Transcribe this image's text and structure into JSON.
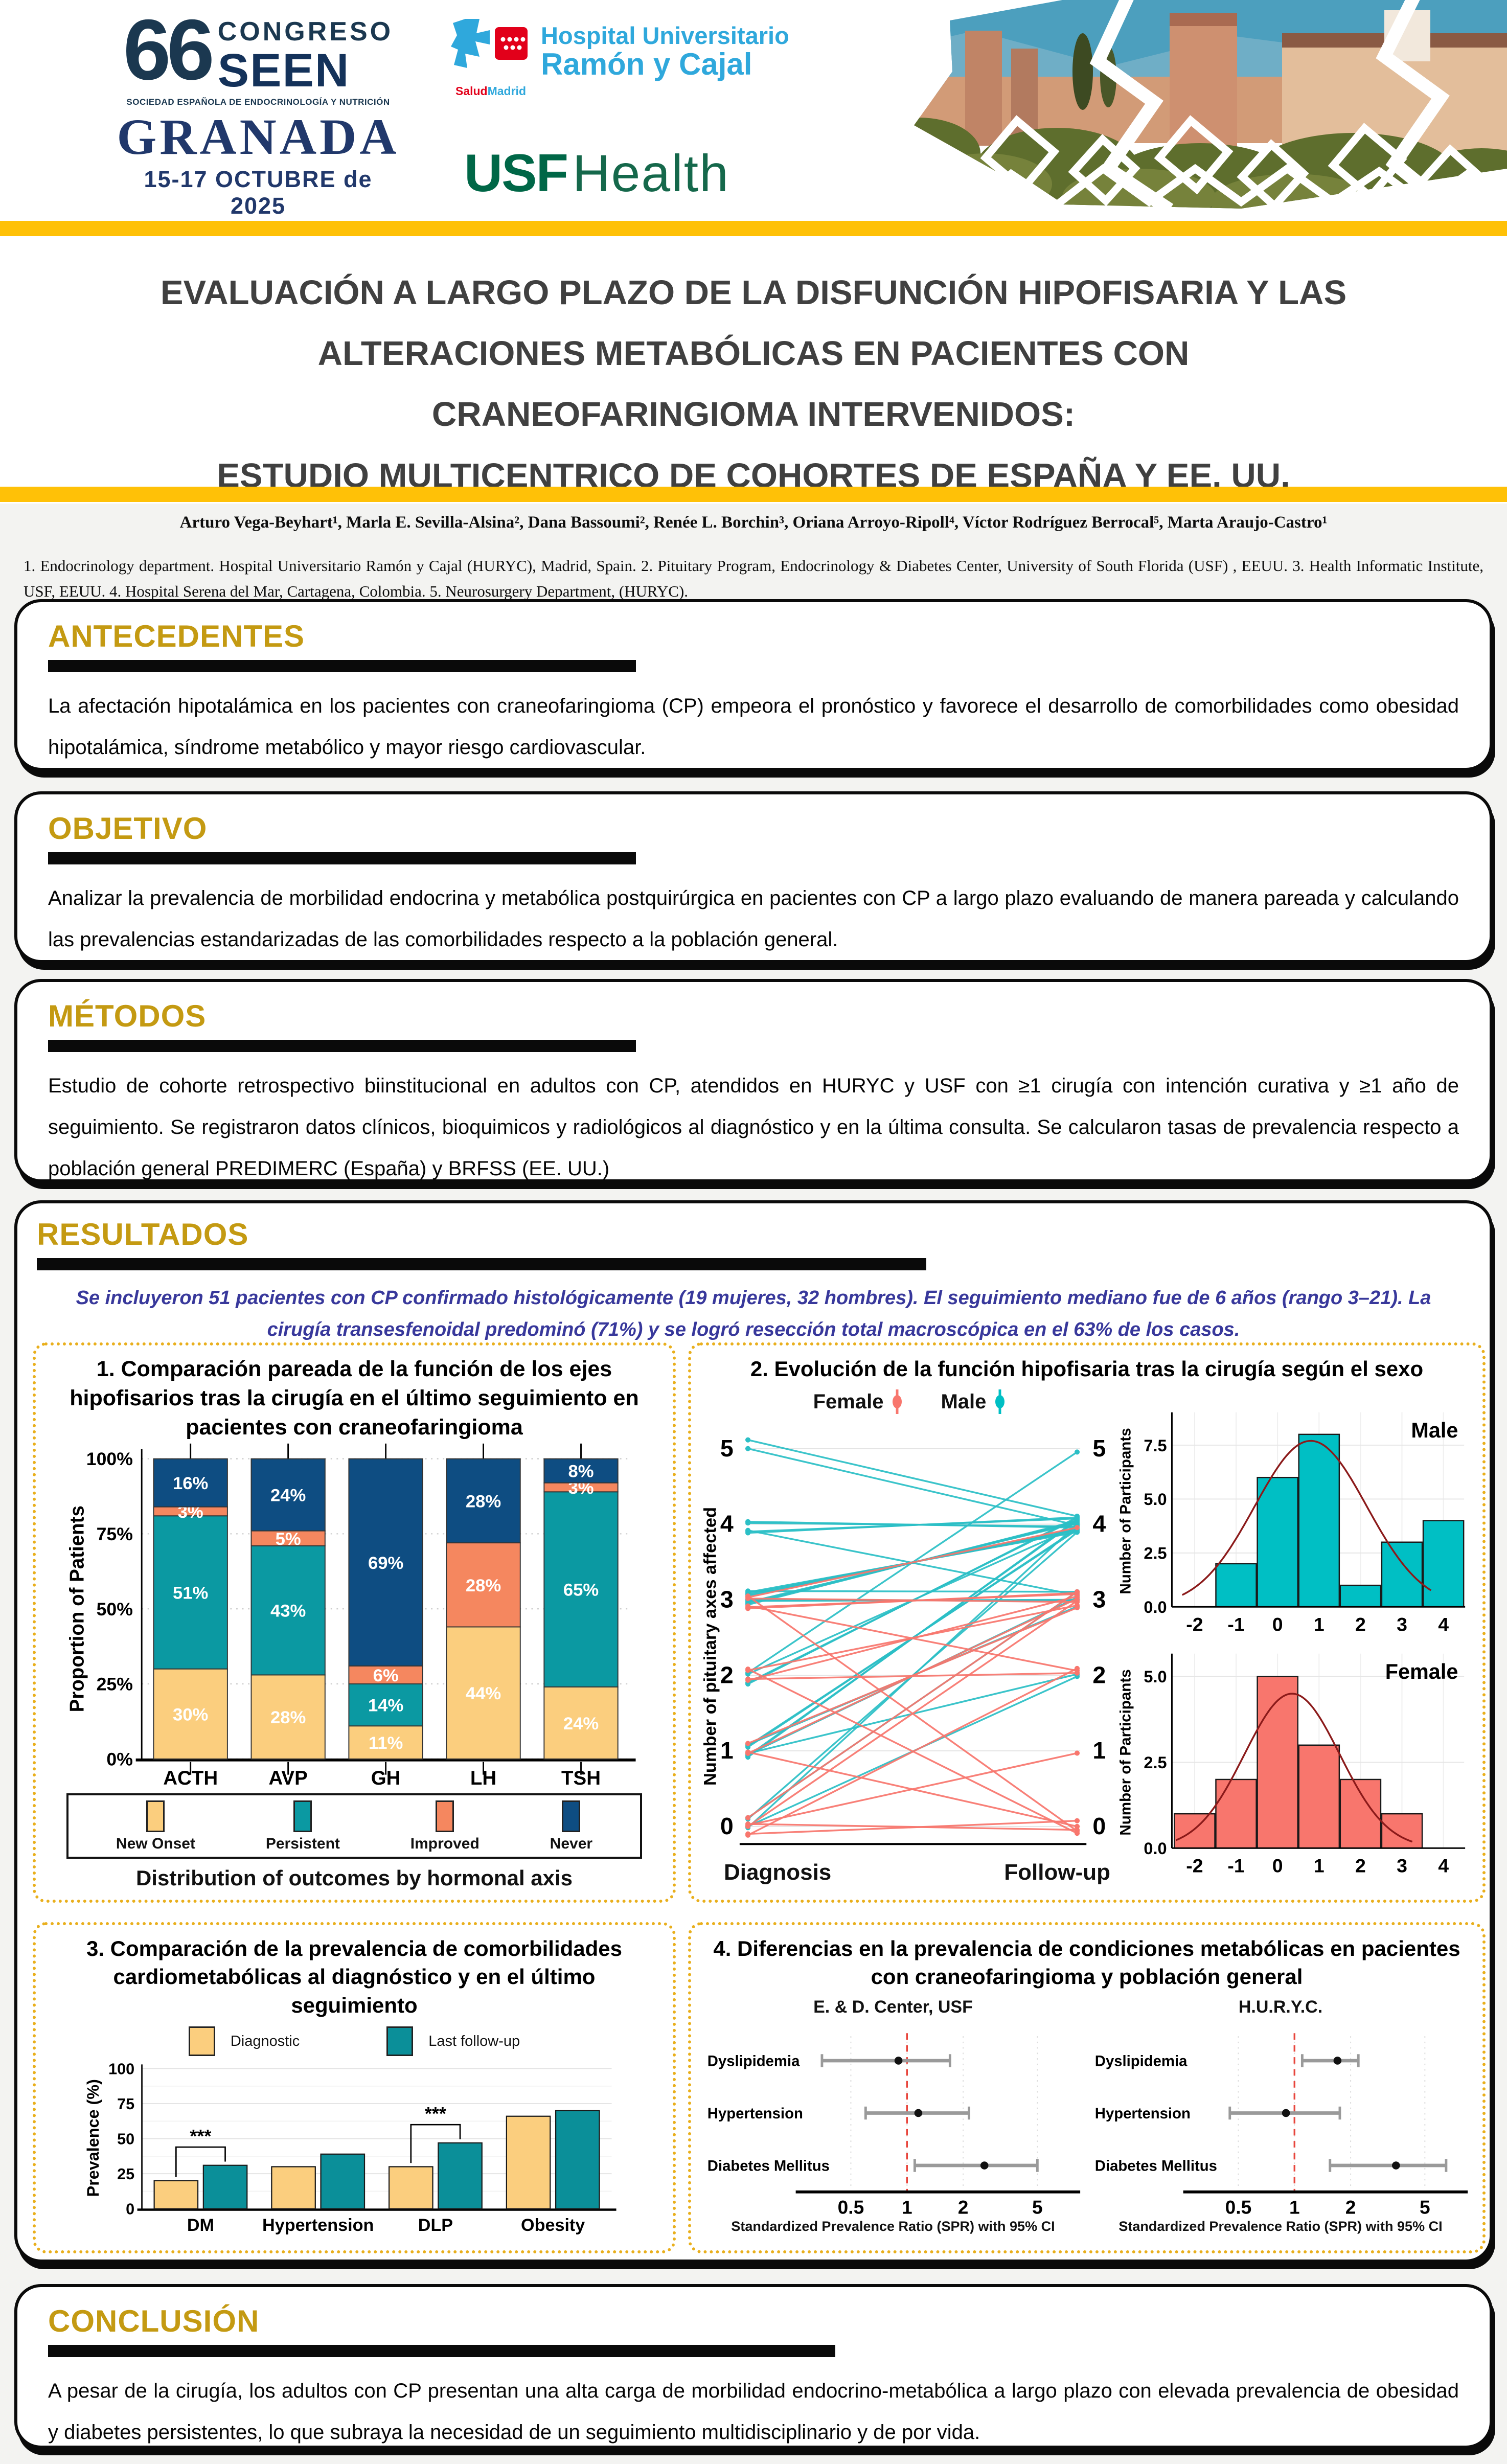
{
  "header": {
    "congress": {
      "number": "66",
      "congreso": "CONGRESO",
      "seen": "SEEN",
      "society": "SOCIEDAD ESPAÑOLA DE ENDOCRINOLOGÍA Y NUTRICIÓN",
      "city": "GRANADA",
      "dates": "15-17 OCTUBRE de 2025"
    },
    "hospital": {
      "line1": "Hospital Universitario",
      "line2": "Ramón y Cajal",
      "salud": "Salud",
      "madrid": "Madrid"
    },
    "usf": {
      "usf": "USF",
      "health": "Health"
    }
  },
  "title_lines": [
    "EVALUACIÓN A LARGO PLAZO DE LA DISFUNCIÓN HIPOFISARIA Y LAS",
    "ALTERACIONES METABÓLICAS EN PACIENTES CON",
    "CRANEOFARINGIOMA INTERVENIDOS:",
    "ESTUDIO MULTICENTRICO DE COHORTES DE ESPAÑA Y EE. UU."
  ],
  "authors": "Arturo Vega-Beyhart¹, Marla E. Sevilla-Alsina², Dana Bassoumi², Renée L. Borchin³, Oriana Arroyo-Ripoll⁴, Víctor Rodríguez Berrocal⁵, Marta Araujo-Castro¹",
  "affiliations": "1. Endocrinology department. Hospital Universitario Ramón y Cajal (HURYC), Madrid, Spain. 2. Pituitary Program, Endocrinology & Diabetes Center, University of South Florida (USF) , EEUU. 3. Health Informatic Institute, USF, EEUU. 4. Hospital Serena del Mar, Cartagena, Colombia. 5. Neurosurgery Department, (HURYC).",
  "sections": {
    "antecedentes": {
      "heading": "ANTECEDENTES",
      "text": "La afectación hipotalámica en los pacientes con craneofaringioma (CP) empeora el pronóstico y favorece el desarrollo de comorbilidades como obesidad hipotalámica, síndrome metabólico y mayor riesgo cardiovascular."
    },
    "objetivo": {
      "heading": "OBJETIVO",
      "text": "Analizar la prevalencia de morbilidad endocrina y metabólica postquirúrgica en pacientes con CP a largo plazo evaluando de manera pareada y calculando las prevalencias estandarizadas de las comorbilidades respecto a la población general."
    },
    "metodos": {
      "heading": "MÉTODOS",
      "text": "Estudio de cohorte retrospectivo biinstitucional en adultos con CP, atendidos en HURYC y USF con ≥1 cirugía con intención curativa y ≥1 año de seguimiento. Se registraron datos clínicos, bioquimicos y radiológicos al diagnóstico y en la última consulta. Se calcularon tasas de prevalencia respecto a población general PREDIMERC (España) y BRFSS (EE. UU.)"
    },
    "resultados": {
      "heading": "RESULTADOS",
      "intro": "Se incluyeron 51 pacientes con CP confirmado histológicamente (19 mujeres, 32 hombres). El seguimiento mediano fue de 6 años (rango 3–21). La cirugía transesfenoidal predominó (71%) y se logró resección total macroscópica en el 63% de los casos."
    },
    "conclusion": {
      "heading": "CONCLUSIÓN",
      "text": "A pesar de la cirugía, los adultos con CP presentan una alta carga de morbilidad endocrino-metabólica a largo plazo con elevada prevalencia de obesidad y diabetes persistentes, lo que subraya la necesidad de un seguimiento multidisciplinario y de por vida."
    }
  },
  "colors": {
    "bar_yellow": "#FFC107",
    "heading_gold": "#C49A12",
    "intro_blue": "#38389B",
    "male_teal": "#00BFC4",
    "female_salmon": "#F8766D",
    "curve_dark_red": "#8B1A1A",
    "forest_ref_red": "#E8453C",
    "navy": "#1B3850",
    "usf_green": "#006747",
    "hospital_blue": "#2FA8DC"
  },
  "chart_data": [
    {
      "id": "axes_outcomes",
      "type": "stacked_bar",
      "title": "1. Comparación pareada de la función de los ejes hipofisarios tras la cirugía en el último seguimiento en pacientes con craneofaringioma",
      "ylabel": "Proportion of Patients",
      "xlabel": "Distribution of outcomes by hormonal axis",
      "ytick_vals": [
        0,
        25,
        50,
        75,
        100
      ],
      "ytick_labels": [
        "0%",
        "25%",
        "50%",
        "75%",
        "100%"
      ],
      "categories": [
        "ACTH",
        "AVP",
        "GH",
        "LH",
        "TSH"
      ],
      "series": [
        {
          "name": "New Onset",
          "color": "#FBCE7E",
          "values": [
            30,
            28,
            11,
            44,
            24
          ]
        },
        {
          "name": "Persistent",
          "color": "#0B99A2",
          "values": [
            51,
            43,
            14,
            0,
            65
          ]
        },
        {
          "name": "Improved",
          "color": "#F5875F",
          "values": [
            3,
            5,
            6,
            28,
            3
          ]
        },
        {
          "name": "Never",
          "color": "#0E4D82",
          "values": [
            16,
            24,
            69,
            28,
            8
          ]
        }
      ]
    },
    {
      "id": "evolution_by_sex",
      "type": "slope_histogram",
      "title": "2. Evolución de la función hipofisaria tras la cirugía según el sexo",
      "legend": [
        {
          "name": "Female",
          "color": "#F8766D"
        },
        {
          "name": "Male",
          "color": "#00BFC4"
        }
      ],
      "slope": {
        "ylabel": "Number of pituitary axes affected",
        "x_labels": [
          "Diagnosis",
          "Follow-up"
        ],
        "y_ticks": [
          0,
          1,
          2,
          3,
          4,
          5
        ],
        "lines": [
          {
            "sex": "M",
            "from": 5,
            "to": 4
          },
          {
            "sex": "M",
            "from": 5,
            "to": 4
          },
          {
            "sex": "M",
            "from": 4,
            "to": 4
          },
          {
            "sex": "M",
            "from": 4,
            "to": 4
          },
          {
            "sex": "M",
            "from": 4,
            "to": 4
          },
          {
            "sex": "M",
            "from": 4,
            "to": 4
          },
          {
            "sex": "M",
            "from": 4,
            "to": 3
          },
          {
            "sex": "M",
            "from": 3,
            "to": 4
          },
          {
            "sex": "M",
            "from": 3,
            "to": 4
          },
          {
            "sex": "M",
            "from": 3,
            "to": 4
          },
          {
            "sex": "M",
            "from": 3,
            "to": 4
          },
          {
            "sex": "M",
            "from": 3,
            "to": 4
          },
          {
            "sex": "M",
            "from": 3,
            "to": 4
          },
          {
            "sex": "M",
            "from": 3,
            "to": 4
          },
          {
            "sex": "M",
            "from": 3,
            "to": 3
          },
          {
            "sex": "M",
            "from": 3,
            "to": 3
          },
          {
            "sex": "M",
            "from": 3,
            "to": 3
          },
          {
            "sex": "M",
            "from": 2,
            "to": 4
          },
          {
            "sex": "M",
            "from": 2,
            "to": 4
          },
          {
            "sex": "M",
            "from": 2,
            "to": 4
          },
          {
            "sex": "M",
            "from": 2,
            "to": 5
          },
          {
            "sex": "M",
            "from": 1,
            "to": 4
          },
          {
            "sex": "M",
            "from": 1,
            "to": 4
          },
          {
            "sex": "M",
            "from": 1,
            "to": 4
          },
          {
            "sex": "M",
            "from": 1,
            "to": 4
          },
          {
            "sex": "M",
            "from": 1,
            "to": 3
          },
          {
            "sex": "M",
            "from": 1,
            "to": 3
          },
          {
            "sex": "M",
            "from": 1,
            "to": 2
          },
          {
            "sex": "M",
            "from": 0,
            "to": 4
          },
          {
            "sex": "M",
            "from": 0,
            "to": 4
          },
          {
            "sex": "M",
            "from": 0,
            "to": 3
          },
          {
            "sex": "M",
            "from": 0,
            "to": 2
          },
          {
            "sex": "F",
            "from": 3,
            "to": 3
          },
          {
            "sex": "F",
            "from": 3,
            "to": 3
          },
          {
            "sex": "F",
            "from": 3,
            "to": 3
          },
          {
            "sex": "F",
            "from": 3,
            "to": 4
          },
          {
            "sex": "F",
            "from": 3,
            "to": 2
          },
          {
            "sex": "F",
            "from": 3,
            "to": 0
          },
          {
            "sex": "F",
            "from": 2,
            "to": 3
          },
          {
            "sex": "F",
            "from": 2,
            "to": 3
          },
          {
            "sex": "F",
            "from": 2,
            "to": 2
          },
          {
            "sex": "F",
            "from": 2,
            "to": 0
          },
          {
            "sex": "F",
            "from": 1,
            "to": 3
          },
          {
            "sex": "F",
            "from": 1,
            "to": 3
          },
          {
            "sex": "F",
            "from": 1,
            "to": 0
          },
          {
            "sex": "F",
            "from": 0,
            "to": 3
          },
          {
            "sex": "F",
            "from": 0,
            "to": 3
          },
          {
            "sex": "F",
            "from": 0,
            "to": 2
          },
          {
            "sex": "F",
            "from": 0,
            "to": 1
          },
          {
            "sex": "F",
            "from": 0,
            "to": 0
          },
          {
            "sex": "F",
            "from": 0,
            "to": 0
          }
        ]
      },
      "histograms": [
        {
          "label": "Male",
          "color": "#00BFC4",
          "ylabel": "Number of Participants",
          "ytick_vals": [
            0,
            2.5,
            5,
            7.5
          ],
          "ytick_labels": [
            "0.0",
            "2.5",
            "5.0",
            "7.5"
          ],
          "ymax": 8.6,
          "x": [
            -1,
            0,
            1,
            2,
            3,
            4
          ],
          "counts": [
            2,
            6,
            8,
            1,
            3,
            4
          ],
          "curve": {
            "amp": 7.7,
            "mean": 0.8,
            "sd": 1.35,
            "range": [
              -2.3,
              3.75
            ]
          },
          "xticks": [
            -2,
            -1,
            0,
            1,
            2,
            3,
            4
          ]
        },
        {
          "label": "Female",
          "color": "#F8766D",
          "ylabel": "Number of Participants",
          "ytick_vals": [
            0,
            2.5,
            5
          ],
          "ytick_labels": [
            "0.0",
            "2.5",
            "5.0"
          ],
          "ymax": 5.4,
          "x": [
            -2,
            -1,
            0,
            1,
            2,
            3
          ],
          "counts": [
            1,
            2,
            5,
            3,
            2,
            1
          ],
          "curve": {
            "amp": 4.5,
            "mean": 0.35,
            "sd": 1.15,
            "range": [
              -2.45,
              3.3
            ]
          },
          "xticks": [
            -2,
            -1,
            0,
            1,
            2,
            3,
            4
          ]
        }
      ]
    },
    {
      "id": "comorbidity_prevalence",
      "type": "grouped_bar",
      "title": "3. Comparación de la prevalencia de comorbilidades cardiometabólicas al diagnóstico y en el último seguimiento",
      "ylabel": "Prevalence (%)",
      "ytick_vals": [
        0,
        25,
        50,
        75,
        100
      ],
      "categories": [
        "DM",
        "Hypertension",
        "DLP",
        "Obesity"
      ],
      "series": [
        {
          "name": "Diagnostic",
          "color": "#FBCE7E",
          "values": [
            20,
            30,
            30,
            66
          ]
        },
        {
          "name": "Last follow-up",
          "color": "#0B8F99",
          "values": [
            31,
            39,
            47,
            70
          ]
        }
      ],
      "significance": [
        {
          "category": "DM",
          "label": "***"
        },
        {
          "category": "DLP",
          "label": "***"
        }
      ]
    },
    {
      "id": "spr_forest",
      "type": "forest",
      "title": "4. Diferencias en la prevalencia de condiciones metabólicas en pacientes con craneofaringioma y población general",
      "xlabel": "Standardized Prevalence Ratio (SPR) with 95% CI",
      "xticks": [
        0.5,
        1,
        2,
        5
      ],
      "ref_line": 1,
      "panels": [
        {
          "title": "E. & D. Center, USF",
          "rows": [
            {
              "label": "Dyslipidemia",
              "est": 0.9,
              "lo": 0.35,
              "hi": 1.7
            },
            {
              "label": "Hypertension",
              "est": 1.15,
              "lo": 0.6,
              "hi": 2.15
            },
            {
              "label": "Diabetes Mellitus",
              "est": 2.6,
              "lo": 1.1,
              "hi": 5.0
            }
          ]
        },
        {
          "title": "H.U.R.Y.C.",
          "rows": [
            {
              "label": "Dyslipidemia",
              "est": 1.7,
              "lo": 1.1,
              "hi": 2.2
            },
            {
              "label": "Hypertension",
              "est": 0.9,
              "lo": 0.45,
              "hi": 1.75
            },
            {
              "label": "Diabetes Mellitus",
              "est": 3.5,
              "lo": 1.55,
              "hi": 6.5
            }
          ]
        }
      ]
    }
  ]
}
